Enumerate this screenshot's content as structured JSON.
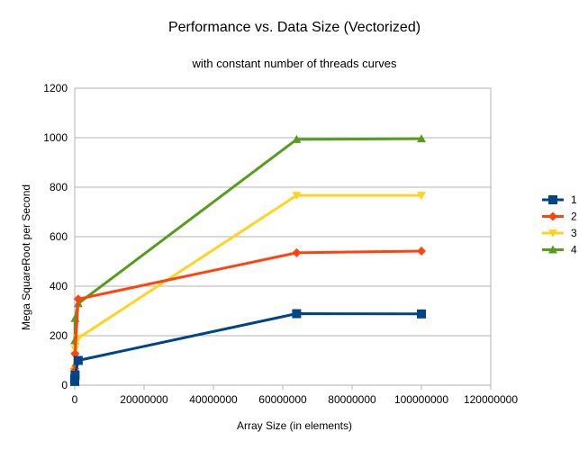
{
  "chart_data": {
    "type": "line",
    "title": "Performance vs. Data Size (Vectorized)",
    "subtitle": "with constant number of threads curves",
    "xlabel": "Array Size (in elements)",
    "ylabel": "Mega SquareRoot per Second",
    "xlim": [
      0,
      120000000
    ],
    "ylim": [
      0,
      1200
    ],
    "x_ticks": [
      0,
      20000000,
      40000000,
      60000000,
      80000000,
      100000000,
      120000000
    ],
    "x_tick_labels": [
      "0",
      "20000000",
      "40000000",
      "60000000",
      "80000000",
      "100000000",
      "120000000"
    ],
    "y_ticks": [
      0,
      200,
      400,
      600,
      800,
      1000,
      1200
    ],
    "y_tick_labels": [
      "0",
      "200",
      "400",
      "600",
      "800",
      "1000",
      "1200"
    ],
    "grid": "horizontal",
    "legend_position": "right",
    "series": [
      {
        "name": "1",
        "color": "#004586",
        "marker": "square",
        "points": [
          [
            1000,
            15
          ],
          [
            10000,
            25
          ],
          [
            100000,
            40
          ],
          [
            1000000,
            100
          ],
          [
            64000000,
            289
          ],
          [
            100000000,
            288
          ]
        ]
      },
      {
        "name": "2",
        "color": "#ff420e",
        "marker": "diamond",
        "points": [
          [
            1000,
            30
          ],
          [
            10000,
            60
          ],
          [
            100000,
            127
          ],
          [
            1000000,
            348
          ],
          [
            64000000,
            535
          ],
          [
            100000000,
            542
          ]
        ]
      },
      {
        "name": "3",
        "color": "#ffd320",
        "marker": "triangle-down",
        "points": [
          [
            1000,
            60
          ],
          [
            10000,
            120
          ],
          [
            100000,
            145
          ],
          [
            1000000,
            190
          ],
          [
            64000000,
            767
          ],
          [
            100000000,
            767
          ]
        ]
      },
      {
        "name": "4",
        "color": "#579d1c",
        "marker": "triangle-up",
        "points": [
          [
            1000,
            80
          ],
          [
            10000,
            180
          ],
          [
            100000,
            270
          ],
          [
            1000000,
            330
          ],
          [
            64000000,
            993
          ],
          [
            100000000,
            996
          ]
        ]
      }
    ]
  }
}
